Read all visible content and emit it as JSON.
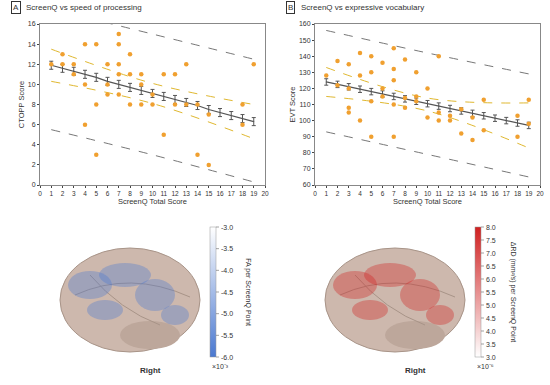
{
  "chart_data": [
    {
      "type": "scatter",
      "panel": "A",
      "title": "ScreenQ vs speed of processing",
      "x_label": "ScreenQ Total Score",
      "y_label": "CTOPP Score",
      "xlim": [
        0,
        20
      ],
      "xticks": [
        0,
        1,
        2,
        3,
        4,
        5,
        6,
        7,
        8,
        9,
        10,
        11,
        12,
        13,
        14,
        15,
        16,
        17,
        18,
        19,
        20
      ],
      "ylim": [
        0,
        16
      ],
      "yticks": [
        0,
        2,
        4,
        6,
        8,
        10,
        12,
        14,
        16
      ],
      "grid": false,
      "points": {
        "color": "#f0a030",
        "x": [
          1,
          2,
          2,
          3,
          3,
          4,
          4,
          4,
          5,
          5,
          5,
          6,
          6,
          6,
          7,
          7,
          7,
          7,
          7,
          8,
          8,
          8,
          9,
          9,
          9,
          10,
          10,
          11,
          11,
          12,
          12,
          13,
          13,
          14,
          14,
          15,
          15,
          18,
          18,
          19
        ],
        "y": [
          12,
          12,
          13,
          12,
          11,
          14,
          10,
          6,
          14,
          8,
          3,
          12,
          10,
          9,
          15,
          14,
          12,
          11,
          9,
          13,
          11,
          8,
          11,
          10,
          8,
          9,
          8,
          11,
          5,
          11,
          8,
          12,
          8,
          8,
          3,
          7,
          2,
          8,
          6,
          12
        ]
      },
      "fit": {
        "color": "#555555",
        "x": [
          1,
          2,
          3,
          4,
          5,
          6,
          7,
          8,
          9,
          10,
          11,
          12,
          13,
          14,
          15,
          16,
          17,
          18,
          19
        ],
        "y": [
          11.9,
          11.6,
          11.3,
          11.0,
          10.7,
          10.3,
          10.0,
          9.7,
          9.4,
          9.1,
          8.8,
          8.5,
          8.2,
          7.9,
          7.5,
          7.2,
          6.9,
          6.6,
          6.3
        ],
        "error": [
          0.4,
          0.4,
          0.4,
          0.4,
          0.4,
          0.4,
          0.4,
          0.4,
          0.4,
          0.4,
          0.4,
          0.4,
          0.4,
          0.4,
          0.4,
          0.4,
          0.4,
          0.4,
          0.4
        ]
      },
      "confidence_band": {
        "color": "#e0b830",
        "line_style": "dash",
        "x": [
          1,
          10,
          19
        ],
        "lower": [
          10.3,
          8.1,
          4.6
        ],
        "upper": [
          13.5,
          10.1,
          8.0
        ]
      },
      "prediction_band": {
        "color": "#777777",
        "line_style": "dash",
        "x": [
          1,
          10,
          19
        ],
        "lower": [
          5.5,
          3.0,
          0.3
        ],
        "upper": [
          17.5,
          15.0,
          12.5
        ]
      }
    },
    {
      "type": "scatter",
      "panel": "B",
      "title": "ScreenQ vs expressive vocabulary",
      "x_label": "ScreenQ Total Score",
      "y_label": "EVT Score",
      "xlim": [
        0,
        20
      ],
      "xticks": [
        0,
        1,
        2,
        3,
        4,
        5,
        6,
        7,
        8,
        9,
        10,
        11,
        12,
        13,
        14,
        15,
        16,
        17,
        18,
        19,
        20
      ],
      "ylim": [
        60,
        160
      ],
      "yticks": [
        60,
        70,
        80,
        90,
        100,
        110,
        120,
        130,
        140,
        150,
        160
      ],
      "grid": false,
      "points": {
        "color": "#f0a030",
        "x": [
          1,
          2,
          2,
          3,
          3,
          3,
          3,
          4,
          4,
          4,
          5,
          5,
          5,
          5,
          6,
          6,
          6,
          7,
          7,
          7,
          7,
          7,
          8,
          8,
          8,
          9,
          9,
          9,
          10,
          10,
          11,
          11,
          11,
          12,
          12,
          13,
          13,
          14,
          14,
          15,
          15,
          18,
          18,
          19,
          19
        ],
        "y": [
          128,
          137,
          122,
          135,
          120,
          108,
          105,
          142,
          128,
          100,
          140,
          130,
          112,
          90,
          136,
          120,
          115,
          145,
          132,
          125,
          110,
          90,
          138,
          114,
          108,
          130,
          115,
          112,
          102,
          120,
          140,
          105,
          100,
          103,
          100,
          107,
          92,
          88,
          102,
          113,
          94,
          103,
          90,
          113,
          98
        ]
      },
      "fit": {
        "color": "#555555",
        "x": [
          1,
          2,
          3,
          4,
          5,
          6,
          7,
          8,
          9,
          10,
          11,
          12,
          13,
          14,
          15,
          16,
          17,
          18,
          19
        ],
        "y": [
          124,
          122.5,
          121,
          119.5,
          118,
          116.5,
          115,
          113.5,
          112,
          110.5,
          109,
          107.5,
          106,
          104.5,
          103,
          101.5,
          100,
          98.5,
          97
        ],
        "error": [
          2,
          2,
          2,
          2,
          2,
          2,
          2,
          2,
          2,
          2,
          2,
          2,
          2,
          2,
          2,
          2,
          2,
          2,
          2
        ]
      },
      "confidence_band": {
        "color": "#e0b830",
        "line_style": "dash",
        "x": [
          1,
          10,
          19
        ],
        "lower": [
          115,
          106,
          83
        ],
        "upper": [
          133,
          114,
          111
        ]
      },
      "prediction_band": {
        "color": "#777777",
        "line_style": "dash",
        "x": [
          1,
          10,
          19
        ],
        "lower": [
          93,
          79,
          65
        ],
        "upper": [
          156,
          142,
          129
        ]
      }
    }
  ],
  "brain_maps": [
    {
      "side_label": "Right",
      "colorbar_label": "FA per ScreenQ Point",
      "multiplier": "×10⁻³",
      "color": "#4a78d0",
      "clim": [
        -6.0,
        -3.0
      ],
      "ticks": [
        {
          "value": -3.0,
          "label": "-3.0"
        },
        {
          "value": -3.5,
          "label": "-3.5"
        },
        {
          "value": -4.0,
          "label": "-4.0"
        },
        {
          "value": -4.5,
          "label": "-4.5"
        },
        {
          "value": -5.0,
          "label": "-5.0"
        },
        {
          "value": -5.5,
          "label": "-5.5"
        },
        {
          "value": -6.0,
          "label": "-6.0"
        }
      ]
    },
    {
      "side_label": "Right",
      "colorbar_label": "ΔRD (mm²/s) per ScreenQ Point",
      "multiplier": "×10⁻⁶",
      "color": "#d02020",
      "clim": [
        3.0,
        8.0
      ],
      "ticks": [
        {
          "value": 8.0,
          "label": "8.0"
        },
        {
          "value": 7.5,
          "label": "7.5"
        },
        {
          "value": 7.0,
          "label": "7.0"
        },
        {
          "value": 6.5,
          "label": "6.5"
        },
        {
          "value": 6.0,
          "label": "6.0"
        },
        {
          "value": 5.5,
          "label": "5.5"
        },
        {
          "value": 5.0,
          "label": "5.0"
        },
        {
          "value": 4.5,
          "label": "4.5"
        },
        {
          "value": 4.0,
          "label": "4.0"
        },
        {
          "value": 3.5,
          "label": "3.5"
        },
        {
          "value": 3.0,
          "label": "3.0"
        }
      ]
    }
  ]
}
